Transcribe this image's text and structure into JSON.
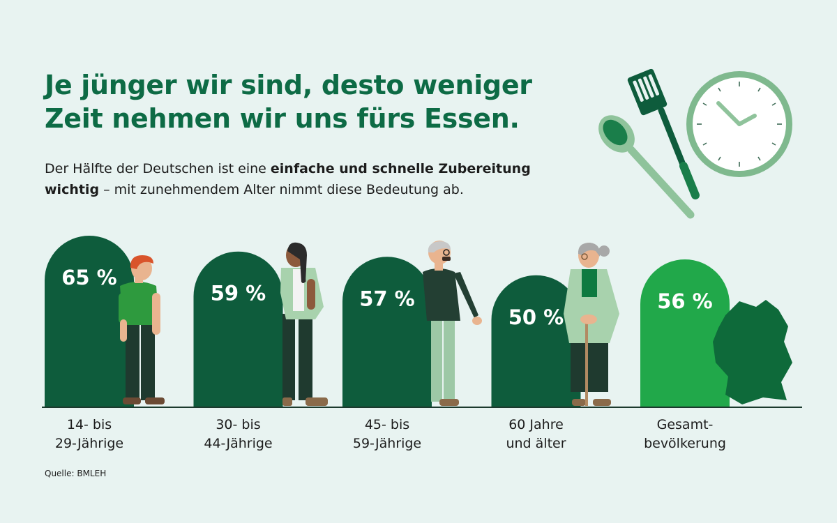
{
  "header": {
    "title_line1": "Je jünger wir sind, desto weniger",
    "title_line2": "Zeit nehmen wir uns fürs Essen.",
    "subtitle_line1_normal": "Der Hälfte der Deutschen ist eine ",
    "subtitle_line1_bold": "einfache und schnelle Zubereitung",
    "subtitle_line2_bold": "wichtig",
    "subtitle_line2_normal": " – mit zunehmendem Alter nimmt diese Bedeutung ab."
  },
  "source": "Quelle: BMLEH",
  "colors": {
    "background": "#e8f3f1",
    "title": "#0d6b45",
    "bar_dark": "#0e5c3c",
    "bar_total": "#21a84a",
    "skin": "#e9b48f",
    "accent_light": "#9dc8a6"
  },
  "chart_data": {
    "type": "bar",
    "title": "Je jünger wir sind, desto weniger Zeit nehmen wir uns fürs Essen.",
    "unit": "%",
    "categories": [
      "14- bis 29-Jährige",
      "30- bis 44-Jährige",
      "45- bis 59-Jährige",
      "60 Jahre und älter",
      "Gesamtbevölkerung"
    ],
    "category_lines": [
      [
        "14- bis",
        "29-Jährige"
      ],
      [
        "30- bis",
        "44-Jährige"
      ],
      [
        "45- bis",
        "59-Jährige"
      ],
      [
        "60 Jahre",
        "und älter"
      ],
      [
        "Gesamt-",
        "bevölkerung"
      ]
    ],
    "values": [
      65,
      59,
      57,
      50,
      56
    ],
    "value_labels": [
      "65 %",
      "59 %",
      "57 %",
      "50 %",
      "56 %"
    ],
    "highlight_index": 4,
    "ylim": [
      0,
      100
    ],
    "grid": false
  },
  "icons": [
    "spatula-icon",
    "spoon-icon",
    "clock-icon",
    "germany-map-icon"
  ]
}
